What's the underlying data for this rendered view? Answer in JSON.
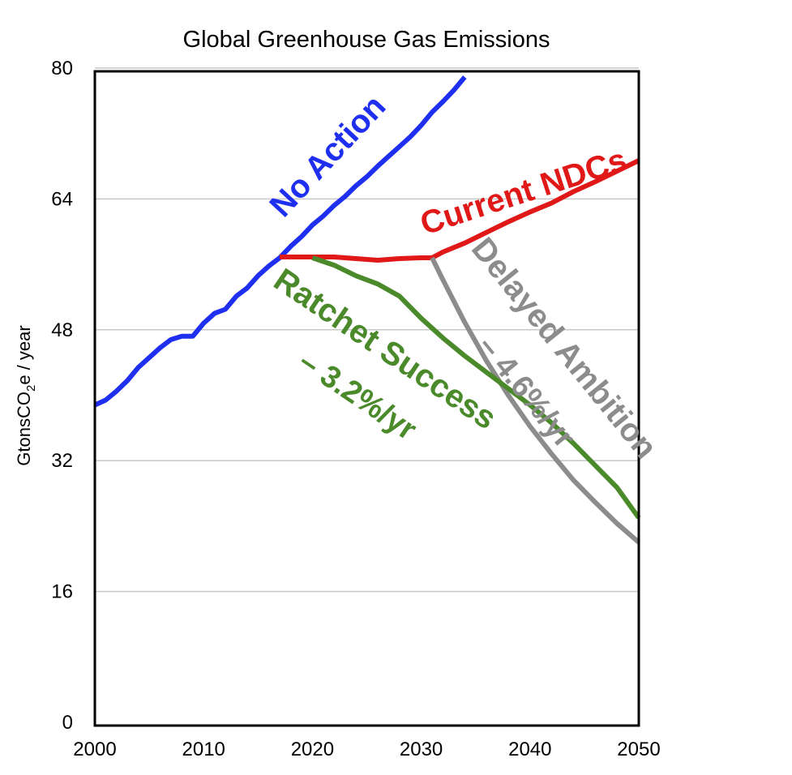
{
  "chart_data": {
    "type": "line",
    "title": "Global Greenhouse Gas Emissions",
    "xlabel": "",
    "ylabel": "GtonsCO₂e / year",
    "xlim": [
      2000,
      2050
    ],
    "ylim": [
      0,
      80
    ],
    "x_ticks": [
      2000,
      2010,
      2020,
      2030,
      2040,
      2050
    ],
    "y_ticks": [
      0,
      16,
      32,
      48,
      64,
      80
    ],
    "grid": "horizontal",
    "colors": {
      "no_action": "#1f2ff0",
      "current_ndcs": "#e01818",
      "delayed_ambition": "#8c8c8c",
      "ratchet_success": "#4a8a2a"
    },
    "series": [
      {
        "key": "no_action",
        "name": "No Action",
        "x": [
          2000,
          2001,
          2002,
          2003,
          2004,
          2005,
          2006,
          2007,
          2008,
          2009,
          2010,
          2011,
          2012,
          2013,
          2014,
          2015,
          2016,
          2017,
          2018,
          2019,
          2020,
          2021,
          2022,
          2023,
          2024,
          2025,
          2026,
          2027,
          2028,
          2029,
          2030,
          2031,
          2032,
          2033,
          2034
        ],
        "y": [
          39.2,
          39.8,
          40.9,
          42.2,
          43.8,
          45.0,
          46.2,
          47.2,
          47.6,
          47.6,
          49.2,
          50.4,
          50.9,
          52.5,
          53.5,
          55.0,
          56.2,
          57.2,
          58.6,
          59.8,
          61.2,
          62.3,
          63.6,
          64.7,
          66.0,
          67.1,
          68.4,
          69.6,
          70.8,
          72.0,
          73.4,
          75.0,
          76.3,
          77.7,
          79.3
        ]
      },
      {
        "key": "current_ndcs",
        "name": "Current NDCs",
        "x": [
          2017,
          2020,
          2022,
          2024,
          2026,
          2028,
          2030,
          2031,
          2032,
          2034,
          2036,
          2038,
          2040,
          2042,
          2044,
          2046,
          2048,
          2050
        ],
        "y": [
          57.3,
          57.3,
          57.3,
          57.1,
          56.9,
          57.1,
          57.2,
          57.2,
          57.9,
          59.0,
          60.3,
          61.6,
          62.8,
          63.9,
          65.3,
          66.5,
          67.8,
          69.1
        ]
      },
      {
        "key": "delayed_ambition",
        "name": "Delayed Ambition",
        "annotation": "– 4.6%/yr",
        "x": [
          2031,
          2032,
          2034,
          2036,
          2038,
          2040,
          2042,
          2044,
          2046,
          2048,
          2050
        ],
        "y": [
          57.2,
          54.5,
          49.3,
          44.6,
          40.4,
          36.6,
          33.2,
          30.0,
          27.3,
          24.7,
          22.4
        ]
      },
      {
        "key": "ratchet_success",
        "name": "Ratchet Success",
        "annotation": "– 3.2%/yr",
        "x": [
          2020,
          2022,
          2024,
          2026,
          2028,
          2030,
          2032,
          2034,
          2036,
          2038,
          2040,
          2042,
          2044,
          2046,
          2048,
          2050
        ],
        "y": [
          57.2,
          56.3,
          55.0,
          54.0,
          52.5,
          49.8,
          47.4,
          45.2,
          43.2,
          41.2,
          39.2,
          37.0,
          34.5,
          31.8,
          29.1,
          25.4
        ]
      }
    ]
  }
}
